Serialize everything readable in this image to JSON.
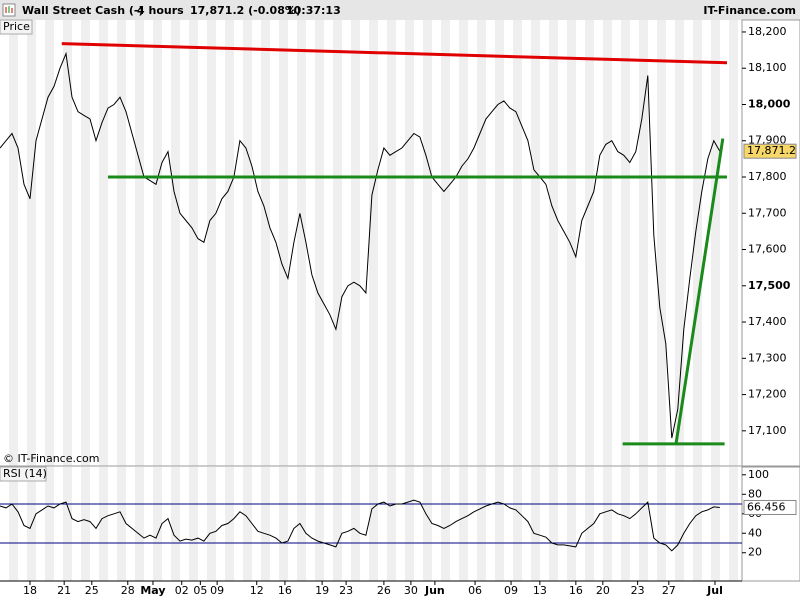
{
  "header": {
    "instrument": "Wall Street Cash (-)",
    "timeframe": "4 hours",
    "quote": "17,871.2 (-0.08%)",
    "time": "10:37:13",
    "brand": "IT-Finance.com"
  },
  "chart_data": [
    {
      "type": "line",
      "title": "Price",
      "watermark": "© IT-Finance.com",
      "xlim": [
        0,
        123.7
      ],
      "xticks": [
        {
          "value": 5,
          "label": "18"
        },
        {
          "value": 10.7,
          "label": "21"
        },
        {
          "value": 15.3,
          "label": "25"
        },
        {
          "value": 21.3,
          "label": "28"
        },
        {
          "value": 25.5,
          "label": "May"
        },
        {
          "value": 30.3,
          "label": "02"
        },
        {
          "value": 33.4,
          "label": "05"
        },
        {
          "value": 36.2,
          "label": "09"
        },
        {
          "value": 42.8,
          "label": "12"
        },
        {
          "value": 47.5,
          "label": "16"
        },
        {
          "value": 53.7,
          "label": "19"
        },
        {
          "value": 57.7,
          "label": "23"
        },
        {
          "value": 64,
          "label": "26"
        },
        {
          "value": 68.5,
          "label": "30"
        },
        {
          "value": 72.5,
          "label": "Jun"
        },
        {
          "value": 79.2,
          "label": "06"
        },
        {
          "value": 85.2,
          "label": "09"
        },
        {
          "value": 90,
          "label": "13"
        },
        {
          "value": 96,
          "label": "16"
        },
        {
          "value": 100.5,
          "label": "20"
        },
        {
          "value": 106.3,
          "label": "23"
        },
        {
          "value": 111.5,
          "label": "27"
        },
        {
          "value": 119.2,
          "label": "Jul"
        }
      ],
      "ylim": [
        17003,
        18233
      ],
      "yticks": [
        {
          "value": 17100,
          "label": "17,100"
        },
        {
          "value": 17200,
          "label": "17,200"
        },
        {
          "value": 17300,
          "label": "17,300"
        },
        {
          "value": 17400,
          "label": "17,400"
        },
        {
          "value": 17500,
          "label": "17,500"
        },
        {
          "value": 17600,
          "label": "17,600"
        },
        {
          "value": 17700,
          "label": "17,700"
        },
        {
          "value": 17800,
          "label": "17,800"
        },
        {
          "value": 17900,
          "label": "17,900"
        },
        {
          "value": 18000,
          "label": "18,000"
        },
        {
          "value": 18100,
          "label": "18,100"
        },
        {
          "value": 18200,
          "label": "18,200"
        }
      ],
      "series": [
        {
          "name": "Wall Street Cash",
          "color": "#000000",
          "values": [
            17880,
            17900,
            17920,
            17880,
            17780,
            17740,
            17900,
            17960,
            18020,
            18050,
            18100,
            18140,
            18020,
            17980,
            17970,
            17960,
            17900,
            17950,
            17990,
            18000,
            18020,
            17980,
            17920,
            17860,
            17800,
            17790,
            17780,
            17840,
            17870,
            17760,
            17700,
            17680,
            17660,
            17630,
            17620,
            17680,
            17700,
            17740,
            17760,
            17800,
            17900,
            17880,
            17830,
            17760,
            17720,
            17660,
            17620,
            17560,
            17520,
            17620,
            17700,
            17620,
            17530,
            17480,
            17450,
            17420,
            17380,
            17470,
            17500,
            17510,
            17500,
            17480,
            17750,
            17820,
            17880,
            17860,
            17870,
            17880,
            17900,
            17920,
            17910,
            17860,
            17800,
            17780,
            17760,
            17780,
            17800,
            17830,
            17850,
            17880,
            17920,
            17960,
            17980,
            18000,
            18010,
            17990,
            17980,
            17940,
            17900,
            17820,
            17800,
            17780,
            17720,
            17680,
            17650,
            17620,
            17580,
            17680,
            17720,
            17760,
            17860,
            17890,
            17900,
            17870,
            17860,
            17840,
            17870,
            17960,
            18080,
            17640,
            17440,
            17340,
            17080,
            17160,
            17380,
            17520,
            17650,
            17760,
            17850,
            17900,
            17871.2
          ]
        }
      ],
      "last_label": "17,871.2",
      "lines": [
        {
          "color": "#e00000",
          "x": [
            10.3,
            121.2
          ],
          "y": [
            18168,
            18115
          ]
        },
        {
          "color": "#1a8a1a",
          "x": [
            18,
            121.2
          ],
          "y": [
            17800,
            17800
          ]
        },
        {
          "color": "#1a8a1a",
          "x": [
            112.7,
            120.5
          ],
          "y": [
            17064,
            17906
          ]
        },
        {
          "color": "#1a8a1a",
          "x": [
            103.8,
            120.8
          ],
          "y": [
            17064,
            17064
          ]
        }
      ]
    },
    {
      "type": "line",
      "title": "RSI (14)",
      "xlim": [
        0,
        123.7
      ],
      "ylim": [
        -9,
        108
      ],
      "yticks": [
        20,
        40,
        60,
        80,
        100
      ],
      "levels": [
        70,
        30
      ],
      "series": [
        {
          "name": "RSI",
          "color": "#000000",
          "values": [
            68,
            66,
            70,
            62,
            48,
            45,
            60,
            64,
            68,
            66,
            70,
            72,
            55,
            52,
            54,
            52,
            45,
            55,
            58,
            60,
            62,
            50,
            45,
            40,
            35,
            38,
            35,
            50,
            55,
            38,
            32,
            34,
            33,
            35,
            32,
            40,
            42,
            48,
            50,
            55,
            62,
            58,
            50,
            42,
            40,
            38,
            35,
            30,
            32,
            45,
            50,
            40,
            35,
            32,
            30,
            28,
            26,
            40,
            42,
            45,
            40,
            38,
            65,
            70,
            72,
            68,
            70,
            70,
            72,
            74,
            72,
            60,
            50,
            48,
            45,
            48,
            52,
            55,
            58,
            62,
            65,
            68,
            70,
            72,
            70,
            66,
            64,
            58,
            52,
            40,
            38,
            36,
            30,
            28,
            28,
            27,
            26,
            40,
            45,
            50,
            60,
            62,
            64,
            60,
            58,
            55,
            60,
            66,
            72,
            35,
            30,
            28,
            22,
            28,
            40,
            50,
            58,
            62,
            64,
            67,
            66.456
          ]
        }
      ]
    }
  ]
}
